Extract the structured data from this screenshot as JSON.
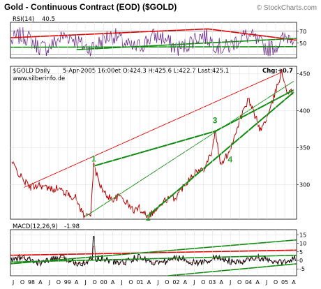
{
  "header": {
    "title": "Gold - Continuous Contract (EOD) ($GOLD)",
    "watermark": "© StockCharts.com"
  },
  "colors": {
    "price": "#b00000",
    "trend_red": "#e00000",
    "trend_green": "#108a10",
    "rsi": "#6a2a8a",
    "macd": "#000000",
    "macd_signal": "#d04040",
    "panel_bg": "#ffffff",
    "grid": "#e3e3e3"
  },
  "chart_data": [
    {
      "type": "line",
      "panel": "rsi",
      "label": "RSI(14)",
      "value_text": "40.5",
      "yticks": [
        50,
        70
      ],
      "ylim": [
        25,
        85
      ],
      "levels": [
        30,
        70
      ],
      "trendlines": [
        {
          "color": "red",
          "points": [
            [
              0,
              59
            ],
            [
              0.69,
              74
            ],
            [
              1.0,
              55
            ]
          ]
        },
        {
          "color": "green",
          "points": [
            [
              0.23,
              39
            ],
            [
              1.0,
              58
            ]
          ]
        },
        {
          "color": "green",
          "points": [
            [
              0.0,
              43
            ],
            [
              1.0,
              44
            ]
          ]
        }
      ]
    },
    {
      "type": "line",
      "panel": "price",
      "series_label": "$GOLD Daily",
      "date_text": "5-Apr-2005 16:00et",
      "ohlc_text": "O:424.3 H:425.6 L:422.7 Last:425.1",
      "change_text": "Chg:+0.7",
      "source_text": "www.silberinfo.de",
      "yticks": [
        300,
        350,
        400,
        450
      ],
      "ylim": [
        253,
        460
      ],
      "series": [
        {
          "name": "$GOLD",
          "x": [
            "1997-07",
            "1997-10",
            "1998-01",
            "1998-04",
            "1998-07",
            "1998-10",
            "1999-01",
            "1999-04",
            "1999-07",
            "1999-09",
            "1999-10",
            "2000-01",
            "2000-04",
            "2000-07",
            "2000-11",
            "2001-01",
            "2001-04",
            "2001-07",
            "2001-10",
            "2002-01",
            "2002-04",
            "2002-07",
            "2002-10",
            "2003-01",
            "2003-02",
            "2003-04",
            "2003-07",
            "2003-10",
            "2004-01",
            "2004-04",
            "2004-05",
            "2004-08",
            "2004-11",
            "2004-12",
            "2005-02",
            "2005-04"
          ],
          "values": [
            330,
            310,
            296,
            300,
            294,
            295,
            288,
            282,
            256,
            262,
            325,
            290,
            280,
            284,
            265,
            268,
            258,
            267,
            280,
            282,
            300,
            316,
            320,
            345,
            372,
            325,
            348,
            385,
            415,
            385,
            373,
            398,
            440,
            452,
            425,
            425
          ]
        }
      ],
      "trendlines": [
        {
          "color": "red",
          "points": [
            [
              "1997-11",
              296
            ],
            [
              "2004-12",
              452
            ]
          ]
        },
        {
          "color": "green",
          "points": [
            [
              "1999-10",
              325
            ],
            [
              "2003-02",
              372
            ],
            [
              "2005-04",
              428
            ]
          ]
        },
        {
          "color": "green",
          "points": [
            [
              "1999-07",
              256
            ],
            [
              "2005-04",
              440
            ]
          ]
        },
        {
          "color": "green",
          "points": [
            [
              "2001-04",
              258
            ],
            [
              "2005-04",
              425
            ]
          ]
        }
      ],
      "annotations": [
        {
          "text": "1",
          "x": "1999-10",
          "y": 331
        },
        {
          "text": "2",
          "x": "2001-04",
          "y": 251
        },
        {
          "text": "3",
          "x": "2003-02",
          "y": 383
        },
        {
          "text": "4",
          "x": "2003-07",
          "y": 330
        }
      ]
    },
    {
      "type": "line",
      "panel": "macd",
      "label": "MACD(12,26,9)",
      "value_text": "-1.98",
      "yticks": [
        -5,
        0,
        5,
        10,
        15
      ],
      "ylim": [
        -9,
        18
      ],
      "levels": [
        0
      ],
      "trendlines": [
        {
          "color": "red",
          "points": [
            [
              0.0,
              3
            ],
            [
              1.0,
              6
            ]
          ]
        },
        {
          "color": "green",
          "points": [
            [
              0.0,
              -2
            ],
            [
              1.0,
              12
            ]
          ]
        },
        {
          "color": "green",
          "points": [
            [
              0.0,
              -1
            ],
            [
              1.0,
              3
            ]
          ]
        },
        {
          "color": "green",
          "points": [
            [
              0.55,
              -9
            ],
            [
              1.0,
              -2
            ]
          ]
        }
      ],
      "spike": {
        "x": "1999-10",
        "y": 14
      }
    }
  ],
  "x_axis": {
    "labels": [
      "J",
      "O",
      "98",
      "A",
      "J",
      "O",
      "99",
      "A",
      "J",
      "O",
      "00",
      "A",
      "J",
      "O",
      "01",
      "A",
      "J",
      "O",
      "02",
      "A",
      "J",
      "O",
      "03",
      "A",
      "J",
      "O",
      "04",
      "A",
      "J",
      "O",
      "05",
      "A"
    ],
    "start": "1997-07",
    "end": "2005-04"
  }
}
